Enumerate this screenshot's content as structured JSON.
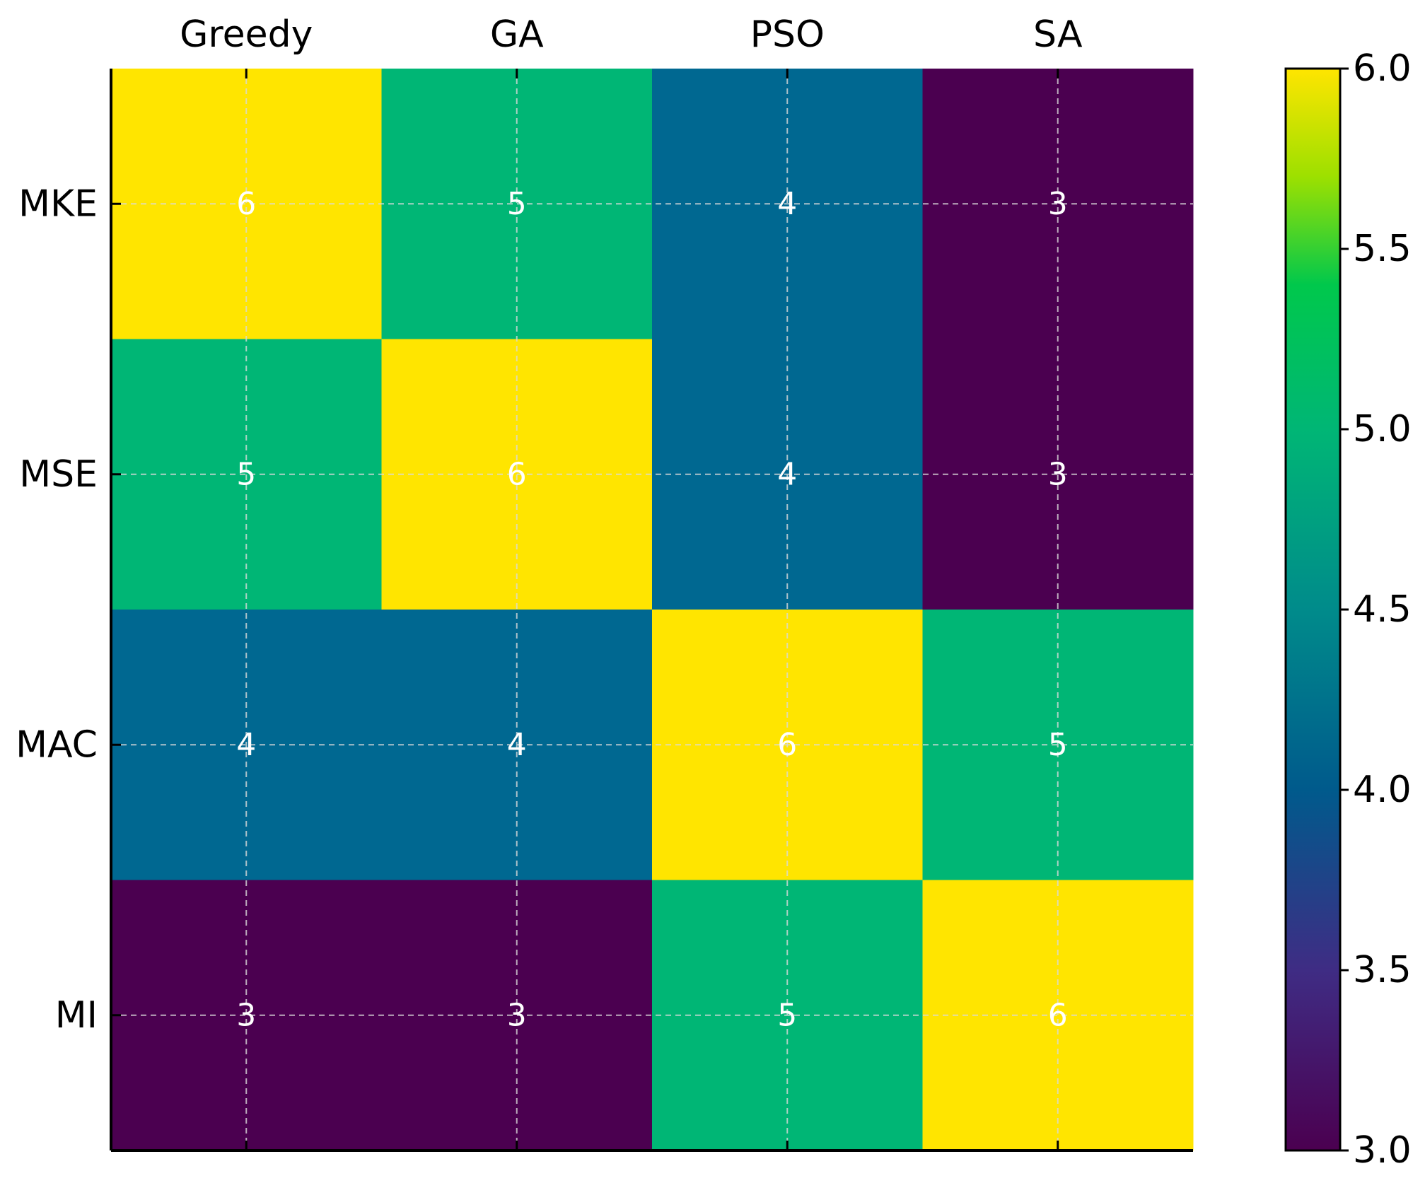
{
  "chart_data": {
    "type": "heatmap",
    "title": "",
    "xlabel": "",
    "ylabel": "",
    "x_categories": [
      "Greedy",
      "GA",
      "PSO",
      "SA"
    ],
    "y_categories": [
      "MKE",
      "MSE",
      "MAC",
      "MI"
    ],
    "values": [
      [
        6,
        5,
        4,
        3
      ],
      [
        5,
        6,
        4,
        3
      ],
      [
        4,
        4,
        6,
        5
      ],
      [
        3,
        3,
        5,
        6
      ]
    ],
    "cell_labels": [
      [
        "6",
        "5",
        "4",
        "3"
      ],
      [
        "5",
        "6",
        "4",
        "3"
      ],
      [
        "4",
        "4",
        "6",
        "5"
      ],
      [
        "3",
        "3",
        "5",
        "6"
      ]
    ],
    "x_tick_position": "top",
    "grid": true,
    "colormap": "viridis",
    "colorbar": {
      "range": [
        3.0,
        6.0
      ],
      "ticks": [
        3.0,
        3.5,
        4.0,
        4.5,
        5.0,
        5.5,
        6.0
      ],
      "tick_labels": [
        "3.0",
        "3.5",
        "4.0",
        "4.5",
        "5.0",
        "5.5",
        "6.0"
      ],
      "position": "right"
    },
    "colors": {
      "3": "#4b0050",
      "4": "#006891",
      "5": "#00b675",
      "6": "#ffe500"
    },
    "colorbar_stops": [
      {
        "value": 3.0,
        "color": "#4b0050"
      },
      {
        "value": 3.5,
        "color": "#3f2c84"
      },
      {
        "value": 4.0,
        "color": "#005a8c"
      },
      {
        "value": 4.5,
        "color": "#008b8b"
      },
      {
        "value": 5.0,
        "color": "#00b675"
      },
      {
        "value": 5.4,
        "color": "#00c84c"
      },
      {
        "value": 5.7,
        "color": "#9de000"
      },
      {
        "value": 6.0,
        "color": "#ffe500"
      }
    ]
  }
}
